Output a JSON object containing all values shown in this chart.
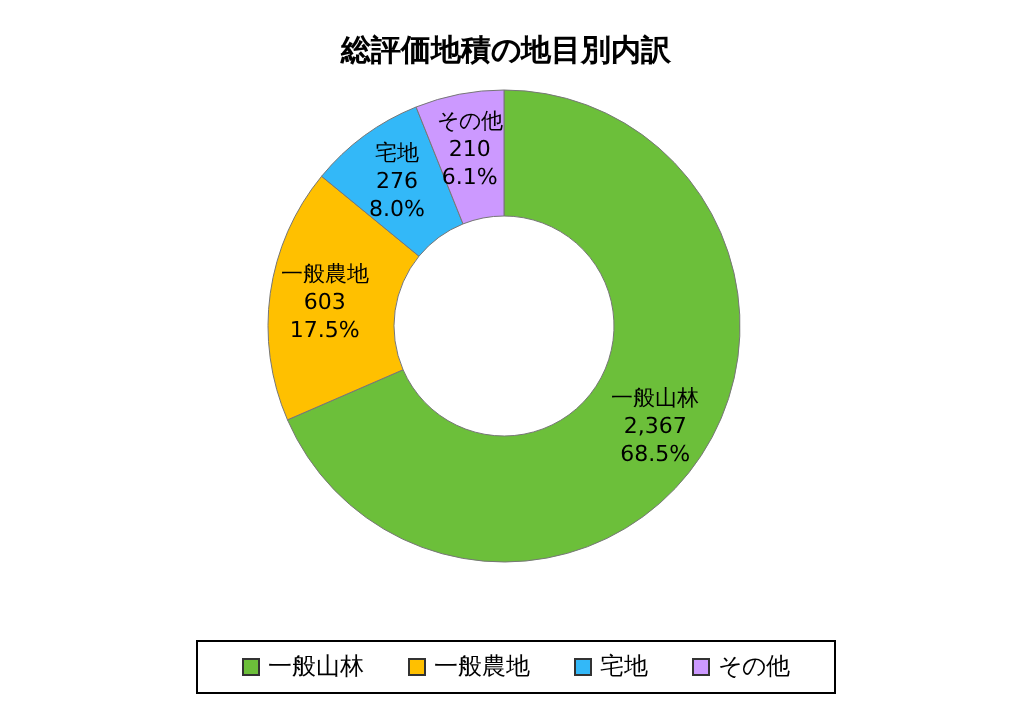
{
  "chart_data": {
    "type": "donut",
    "title": "総評価地積の地目別内訳",
    "categories": [
      "一般山林",
      "一般農地",
      "宅地",
      "その他"
    ],
    "values": [
      2367,
      603,
      276,
      210
    ],
    "value_labels": [
      "2,367\n68.5%",
      "603\n17.5%",
      "276\n8.0%",
      "210\n6.1%"
    ],
    "colors": [
      "#6cbf3a",
      "#ffc000",
      "#33b8f8",
      "#cc99ff"
    ],
    "legend": "bottom"
  }
}
